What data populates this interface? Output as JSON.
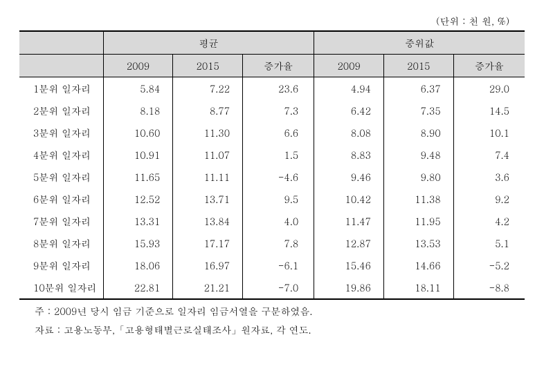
{
  "unit_label": "(단위 : 천 원, %)",
  "headers": {
    "group1": "평균",
    "group2": "중위값",
    "year1": "2009",
    "year2": "2015",
    "rate": "증가율"
  },
  "rows": [
    {
      "label": "1분위 일자리",
      "avg_2009": "5.84",
      "avg_2015": "7.22",
      "avg_rate": "23.6",
      "med_2009": "4.94",
      "med_2015": "6.37",
      "med_rate": "29.0"
    },
    {
      "label": "2분위 일자리",
      "avg_2009": "8.18",
      "avg_2015": "8.77",
      "avg_rate": "7.3",
      "med_2009": "6.42",
      "med_2015": "7.35",
      "med_rate": "14.5"
    },
    {
      "label": "3분위 일자리",
      "avg_2009": "10.60",
      "avg_2015": "11.30",
      "avg_rate": "6.6",
      "med_2009": "8.08",
      "med_2015": "8.90",
      "med_rate": "10.1"
    },
    {
      "label": "4분위 일자리",
      "avg_2009": "10.91",
      "avg_2015": "11.07",
      "avg_rate": "1.5",
      "med_2009": "8.83",
      "med_2015": "9.48",
      "med_rate": "7.4"
    },
    {
      "label": "5분위 일자리",
      "avg_2009": "11.65",
      "avg_2015": "11.11",
      "avg_rate": "-4.6",
      "med_2009": "9.46",
      "med_2015": "9.80",
      "med_rate": "3.6"
    },
    {
      "label": "6분위 일자리",
      "avg_2009": "12.52",
      "avg_2015": "13.71",
      "avg_rate": "9.5",
      "med_2009": "10.42",
      "med_2015": "11.38",
      "med_rate": "9.2"
    },
    {
      "label": "7분위 일자리",
      "avg_2009": "13.31",
      "avg_2015": "13.84",
      "avg_rate": "4.0",
      "med_2009": "11.47",
      "med_2015": "11.95",
      "med_rate": "4.2"
    },
    {
      "label": "8분위 일자리",
      "avg_2009": "15.93",
      "avg_2015": "17.17",
      "avg_rate": "7.8",
      "med_2009": "12.87",
      "med_2015": "13.53",
      "med_rate": "5.1"
    },
    {
      "label": "9분위 일자리",
      "avg_2009": "18.06",
      "avg_2015": "16.97",
      "avg_rate": "-6.1",
      "med_2009": "15.46",
      "med_2015": "14.66",
      "med_rate": "-5.2"
    },
    {
      "label": "10분위 일자리",
      "avg_2009": "22.81",
      "avg_2015": "21.21",
      "avg_rate": "-7.0",
      "med_2009": "19.86",
      "med_2015": "18.11",
      "med_rate": "-8.8"
    }
  ],
  "footnotes": {
    "note": "주 : 2009년 당시 임금 기준으로 일자리 임금서열을 구분하였음.",
    "source": "자료 : 고용노동부,「고용형태별근로실태조사」원자료, 각 연도."
  }
}
